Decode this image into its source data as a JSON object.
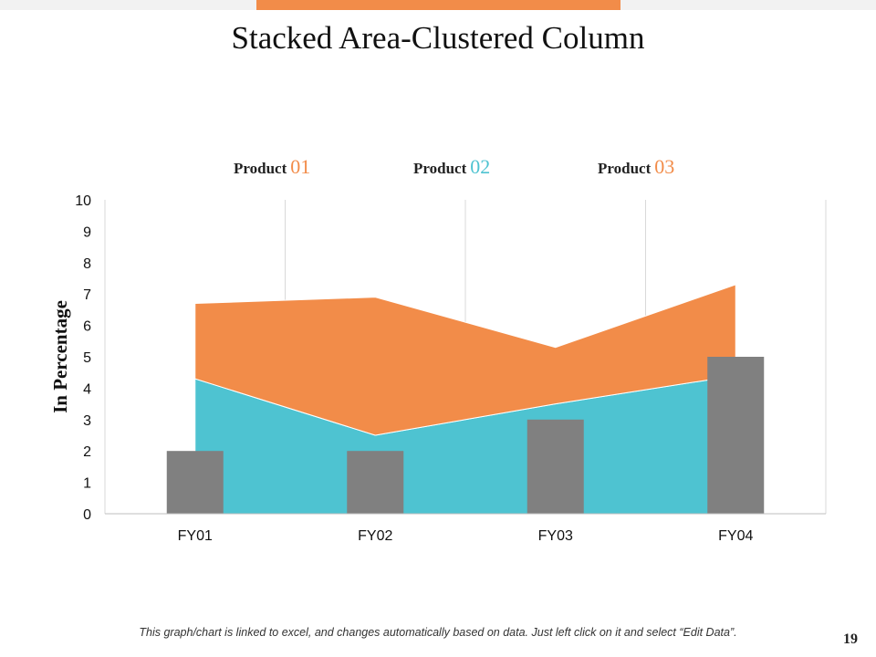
{
  "header": {
    "accent_color": "#f28c49"
  },
  "chart_data": {
    "type": "area+bar",
    "title": "Stacked Area-Clustered Column",
    "xlabel": "",
    "ylabel": "In Percentage",
    "ylim": [
      0,
      10
    ],
    "yticks": [
      0,
      1,
      2,
      3,
      4,
      5,
      6,
      7,
      8,
      9,
      10
    ],
    "categories": [
      "FY01",
      "FY02",
      "FY03",
      "FY04"
    ],
    "legend": [
      {
        "prefix": "Product",
        "number": "01",
        "color": "#f28c49"
      },
      {
        "prefix": "Product",
        "number": "02",
        "color": "#4ec3d1"
      },
      {
        "prefix": "Product",
        "number": "03",
        "color": "#f28c49"
      }
    ],
    "series": [
      {
        "name": "Product 01",
        "kind": "stacked-area",
        "color": "#4ec3d1",
        "values": [
          4.3,
          2.5,
          3.5,
          4.4
        ]
      },
      {
        "name": "Product 02",
        "kind": "stacked-area",
        "color": "#f28c49",
        "values": [
          2.4,
          4.4,
          1.8,
          2.9
        ]
      },
      {
        "name": "Product 03",
        "kind": "column",
        "color": "#808080",
        "values": [
          2,
          2,
          3,
          5
        ]
      }
    ]
  },
  "footer": {
    "note": "This graph/chart is linked to excel, and changes automatically based on data. Just left click on it and select “Edit Data”.",
    "page_number": "19"
  }
}
